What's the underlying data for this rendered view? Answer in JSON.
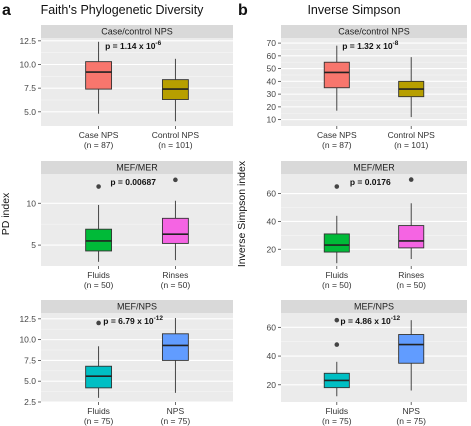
{
  "figure": {
    "label_a": "a",
    "label_b": "b",
    "title_a": "Faith's Phylogenetic Diversity",
    "title_b": "Inverse Simpson",
    "ylabel_a": "PD index",
    "ylabel_b": "Inverse Simpson index"
  },
  "colors": {
    "panel_bg": "#ebebeb",
    "strip_bg": "#d9d9d9",
    "case_nps": "#f8766d",
    "control_nps": "#b79f00",
    "fluids_mer": "#00ba38",
    "rinses": "#f564e3",
    "fluids_nps": "#00bfc4",
    "nps_blue": "#619cff"
  },
  "chart_data": [
    {
      "type": "box",
      "panel": "a",
      "strip": "Case/control NPS",
      "p_base": "p = 1.14 x 10",
      "p_exp": "-6",
      "ylim": [
        3.5,
        12.8
      ],
      "yticks": [
        5.0,
        7.5,
        10.0,
        12.5
      ],
      "ytick_labels": [
        "5.0",
        "7.5",
        "10.0",
        "12.5"
      ],
      "boxes": [
        {
          "label": "Case NPS",
          "n": "(n = 87)",
          "min": 4.8,
          "q1": 7.4,
          "median": 9.2,
          "q3": 10.3,
          "max": 12.4,
          "outliers": [],
          "color_key": "case_nps"
        },
        {
          "label": "Control NPS",
          "n": "(n = 101)",
          "min": 4.0,
          "q1": 6.3,
          "median": 7.4,
          "q3": 8.4,
          "max": 10.6,
          "outliers": [],
          "color_key": "control_nps"
        }
      ]
    },
    {
      "type": "box",
      "panel": "a",
      "strip": "MEF/MER",
      "p_base": "p = 0.00687",
      "p_exp": "",
      "ylim": [
        2.5,
        13.5
      ],
      "yticks": [
        5,
        10
      ],
      "ytick_labels": [
        "5",
        "10"
      ],
      "boxes": [
        {
          "label": "Fluids",
          "n": "(n = 50)",
          "min": 3.0,
          "q1": 4.3,
          "median": 5.5,
          "q3": 6.9,
          "max": 9.8,
          "outliers": [
            12.0
          ],
          "color_key": "fluids_mer"
        },
        {
          "label": "Rinses",
          "n": "(n = 50)",
          "min": 3.2,
          "q1": 5.2,
          "median": 6.3,
          "q3": 8.2,
          "max": 10.3,
          "outliers": [
            12.8
          ],
          "color_key": "rinses"
        }
      ]
    },
    {
      "type": "box",
      "panel": "a",
      "strip": "MEF/NPS",
      "p_base": "p = 6.79 x 10",
      "p_exp": "-12",
      "ylim": [
        2.5,
        13.2
      ],
      "yticks": [
        2.5,
        5.0,
        7.5,
        10.0,
        12.5
      ],
      "ytick_labels": [
        "2.5",
        "5.0",
        "7.5",
        "10.0",
        "12.5"
      ],
      "boxes": [
        {
          "label": "Fluids",
          "n": "(n = 75)",
          "min": 3.0,
          "q1": 4.2,
          "median": 5.6,
          "q3": 6.8,
          "max": 9.2,
          "outliers": [
            12.0
          ],
          "color_key": "fluids_nps"
        },
        {
          "label": "NPS",
          "n": "(n = 75)",
          "min": 3.6,
          "q1": 7.5,
          "median": 9.3,
          "q3": 10.7,
          "max": 12.6,
          "outliers": [],
          "color_key": "nps_blue"
        }
      ]
    },
    {
      "type": "box",
      "panel": "b",
      "strip": "Case/control NPS",
      "p_base": "p = 1.32 x 10",
      "p_exp": "-8",
      "ylim": [
        5,
        74
      ],
      "yticks": [
        10,
        20,
        30,
        40,
        50,
        60,
        70
      ],
      "ytick_labels": [
        "10",
        "20",
        "30",
        "40",
        "50",
        "60",
        "70"
      ],
      "boxes": [
        {
          "label": "Case NPS",
          "n": "(n = 87)",
          "min": 17,
          "q1": 35,
          "median": 47,
          "q3": 55,
          "max": 68,
          "outliers": [],
          "color_key": "case_nps"
        },
        {
          "label": "Control NPS",
          "n": "(n = 101)",
          "min": 12,
          "q1": 28,
          "median": 34,
          "q3": 40,
          "max": 59,
          "outliers": [],
          "color_key": "control_nps"
        }
      ]
    },
    {
      "type": "box",
      "panel": "b",
      "strip": "MEF/MER",
      "p_base": "p = 0.0176",
      "p_exp": "",
      "ylim": [
        8,
        74
      ],
      "yticks": [
        20,
        40,
        60
      ],
      "ytick_labels": [
        "20",
        "40",
        "60"
      ],
      "boxes": [
        {
          "label": "Fluids",
          "n": "(n = 50)",
          "min": 10,
          "q1": 18,
          "median": 23,
          "q3": 31,
          "max": 44,
          "outliers": [
            65
          ],
          "color_key": "fluids_mer"
        },
        {
          "label": "Rinses",
          "n": "(n = 50)",
          "min": 13,
          "q1": 21,
          "median": 26,
          "q3": 37,
          "max": 53,
          "outliers": [
            70
          ],
          "color_key": "rinses"
        }
      ]
    },
    {
      "type": "box",
      "panel": "b",
      "strip": "MEF/NPS",
      "p_base": "p = 4.86 x 10",
      "p_exp": "-12",
      "ylim": [
        8,
        70
      ],
      "yticks": [
        20,
        40,
        60
      ],
      "ytick_labels": [
        "20",
        "40",
        "60"
      ],
      "boxes": [
        {
          "label": "Fluids",
          "n": "(n = 75)",
          "min": 12,
          "q1": 18,
          "median": 23,
          "q3": 28,
          "max": 36,
          "outliers": [
            48,
            65
          ],
          "color_key": "fluids_nps"
        },
        {
          "label": "NPS",
          "n": "(n = 75)",
          "min": 16,
          "q1": 35,
          "median": 48,
          "q3": 55,
          "max": 65,
          "outliers": [],
          "color_key": "nps_blue"
        }
      ]
    }
  ]
}
